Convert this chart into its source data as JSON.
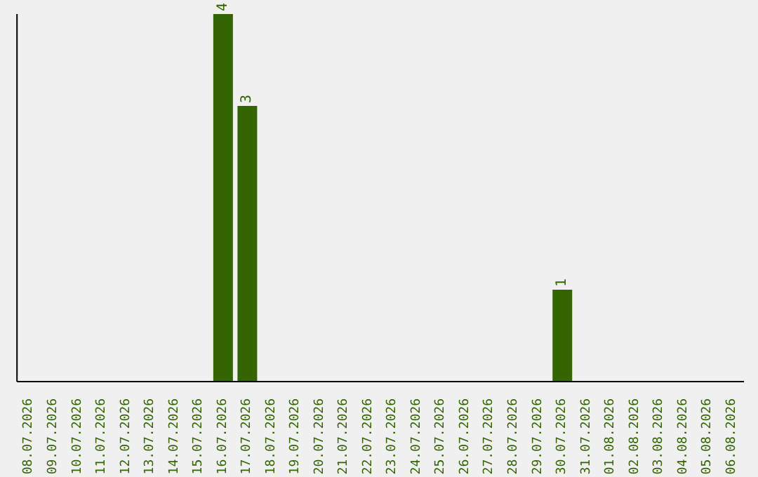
{
  "chart_data": {
    "type": "bar",
    "categories": [
      "08.07.2026",
      "09.07.2026",
      "10.07.2026",
      "11.07.2026",
      "12.07.2026",
      "13.07.2026",
      "14.07.2026",
      "15.07.2026",
      "16.07.2026",
      "17.07.2026",
      "18.07.2026",
      "19.07.2026",
      "20.07.2026",
      "21.07.2026",
      "22.07.2026",
      "23.07.2026",
      "24.07.2026",
      "25.07.2026",
      "26.07.2026",
      "27.07.2026",
      "28.07.2026",
      "29.07.2026",
      "30.07.2026",
      "31.07.2026",
      "01.08.2026",
      "02.08.2026",
      "03.08.2026",
      "04.08.2026",
      "05.08.2026",
      "06.08.2026"
    ],
    "values": [
      0,
      0,
      0,
      0,
      0,
      0,
      0,
      0,
      4,
      3,
      0,
      0,
      0,
      0,
      0,
      0,
      0,
      0,
      0,
      0,
      0,
      0,
      1,
      0,
      0,
      0,
      0,
      0,
      0,
      0
    ],
    "value_labels": [
      null,
      null,
      null,
      null,
      null,
      null,
      null,
      null,
      "4",
      "3",
      null,
      null,
      null,
      null,
      null,
      null,
      null,
      null,
      null,
      null,
      null,
      null,
      "1",
      null,
      null,
      null,
      null,
      null,
      null,
      null
    ],
    "color": "#336600",
    "tick_labels": "x"
  }
}
